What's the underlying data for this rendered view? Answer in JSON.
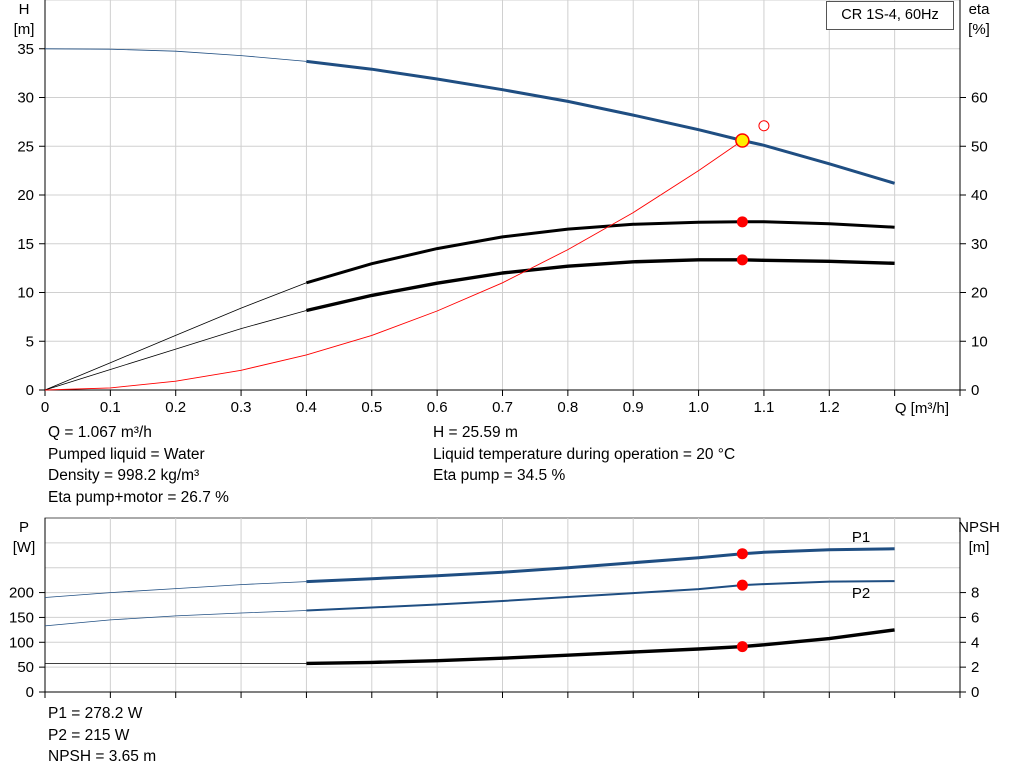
{
  "legend_title": "CR 1S-4, 60Hz",
  "info": {
    "top_left": [
      "Q = 1.067 m³/h",
      "Pumped liquid = Water",
      "Density = 998.2 kg/m³",
      "Eta pump+motor = 26.7 %"
    ],
    "top_right": [
      "H = 25.59 m",
      "Liquid temperature during operation = 20 °C",
      "Eta pump = 34.5 %"
    ],
    "bottom_left": [
      "P1 = 278.2 W",
      "P2 = 215 W",
      "NPSH = 3.65 m"
    ]
  },
  "colors": {
    "blue": "#1f4e82",
    "black": "#000000",
    "red": "#ff0000",
    "grid": "#d0d0d0"
  },
  "chart_data": [
    {
      "type": "line",
      "name": "Q-H / efficiency",
      "x_axis": {
        "label": "Q [m³/h]",
        "range": [
          0,
          1.4
        ],
        "ticks": [
          0,
          0.1,
          0.2,
          0.3,
          0.4,
          0.5,
          0.6,
          0.7,
          0.8,
          0.9,
          1.0,
          1.1,
          1.2
        ],
        "tick_labels": [
          "0",
          "0.1",
          "0.2",
          "0.3",
          "0.4",
          "0.5",
          "0.6",
          "0.7",
          "0.8",
          "0.9",
          "1.0",
          "1.1",
          "1.2"
        ]
      },
      "y_left": {
        "label_line1": "H",
        "label_line2": "[m]",
        "range": [
          0,
          40
        ],
        "ticks": [
          0,
          5,
          10,
          15,
          20,
          25,
          30,
          35
        ]
      },
      "y_right": {
        "label_line1": "eta",
        "label_line2": "[%]",
        "range": [
          0,
          80
        ],
        "ticks": [
          0,
          10,
          20,
          30,
          40,
          50,
          60
        ]
      },
      "grid": true,
      "series": [
        {
          "name": "H",
          "axis": "left",
          "color": "blue",
          "x": [
            0,
            0.1,
            0.2,
            0.3,
            0.4,
            0.5,
            0.6,
            0.7,
            0.8,
            0.9,
            1.0,
            1.067,
            1.1,
            1.2,
            1.3
          ],
          "y": [
            35,
            34.95,
            34.75,
            34.3,
            33.7,
            32.9,
            31.9,
            30.8,
            29.6,
            28.2,
            26.7,
            25.59,
            25.1,
            23.2,
            21.2
          ],
          "bold_from": 0.4
        },
        {
          "name": "Eta pump",
          "axis": "right",
          "color": "black",
          "x": [
            0,
            0.1,
            0.2,
            0.3,
            0.4,
            0.5,
            0.6,
            0.7,
            0.8,
            0.9,
            1.0,
            1.067,
            1.1,
            1.2,
            1.3
          ],
          "y": [
            0,
            5.6,
            11.2,
            16.8,
            22,
            25.9,
            29,
            31.4,
            33,
            34,
            34.4,
            34.5,
            34.5,
            34.1,
            33.4
          ],
          "bold_from": 0.4
        },
        {
          "name": "Eta pump+motor",
          "axis": "right",
          "color": "black",
          "x": [
            0,
            0.1,
            0.2,
            0.3,
            0.4,
            0.5,
            0.6,
            0.7,
            0.8,
            0.9,
            1.0,
            1.067,
            1.1,
            1.2,
            1.3
          ],
          "y": [
            0,
            4.2,
            8.4,
            12.6,
            16.3,
            19.4,
            21.9,
            24,
            25.4,
            26.3,
            26.7,
            26.7,
            26.6,
            26.4,
            26
          ],
          "bold_from": 0.4,
          "heavy": true
        },
        {
          "name": "System curve",
          "axis": "left",
          "color": "red",
          "x": [
            0,
            0.1,
            0.2,
            0.3,
            0.4,
            0.5,
            0.6,
            0.7,
            0.8,
            0.9,
            1.0,
            1.067
          ],
          "y": [
            0,
            0.22,
            0.9,
            2.02,
            3.6,
            5.6,
            8.1,
            11.0,
            14.4,
            18.2,
            22.5,
            25.59
          ],
          "thin": true
        }
      ],
      "markers": [
        {
          "series": "duty point",
          "x": 1.067,
          "y": 25.59,
          "axis": "left",
          "style": "duty"
        },
        {
          "series": "eta pump point",
          "x": 1.067,
          "y": 34.5,
          "axis": "right",
          "style": "dot"
        },
        {
          "series": "eta pump+motor point",
          "x": 1.067,
          "y": 26.7,
          "axis": "right",
          "style": "dot"
        },
        {
          "series": "max point",
          "x": 1.1,
          "y": 27.1,
          "axis": "left",
          "style": "open"
        }
      ]
    },
    {
      "type": "line",
      "name": "Power / NPSH",
      "x_axis": {
        "range": [
          0,
          1.4
        ],
        "ticks": [
          0,
          0.1,
          0.2,
          0.3,
          0.4,
          0.5,
          0.6,
          0.7,
          0.8,
          0.9,
          1.0,
          1.1,
          1.2
        ]
      },
      "y_left": {
        "label_line1": "P",
        "label_line2": "[W]",
        "range": [
          0,
          350
        ],
        "ticks": [
          0,
          50,
          100,
          150,
          200
        ]
      },
      "y_right": {
        "label_line1": "NPSH",
        "label_line2": "[m]",
        "range": [
          0,
          14
        ],
        "ticks": [
          0,
          2,
          4,
          6,
          8
        ]
      },
      "grid": true,
      "series": [
        {
          "name": "P1",
          "axis": "left",
          "color": "blue",
          "label": "P1",
          "x": [
            0,
            0.1,
            0.2,
            0.3,
            0.4,
            0.5,
            0.6,
            0.7,
            0.8,
            0.9,
            1.0,
            1.067,
            1.1,
            1.2,
            1.3
          ],
          "y": [
            190,
            200,
            208,
            216,
            222,
            228,
            234,
            241,
            250,
            260,
            270,
            278.2,
            281,
            286,
            288
          ],
          "bold_from": 0.4
        },
        {
          "name": "P2",
          "axis": "left",
          "color": "blue",
          "label": "P2",
          "x": [
            0,
            0.1,
            0.2,
            0.3,
            0.4,
            0.5,
            0.6,
            0.7,
            0.8,
            0.9,
            1.0,
            1.067,
            1.1,
            1.2,
            1.3
          ],
          "y": [
            133,
            145,
            153,
            159,
            164,
            170,
            176,
            183,
            191,
            199,
            207,
            215,
            217,
            222,
            223
          ],
          "bold_from": 0.4,
          "thin_bold": true
        },
        {
          "name": "NPSH",
          "axis": "right",
          "color": "black",
          "x": [
            0,
            0.1,
            0.2,
            0.3,
            0.4,
            0.5,
            0.6,
            0.7,
            0.8,
            0.9,
            1.0,
            1.067,
            1.1,
            1.2,
            1.3
          ],
          "y": [
            2.3,
            2.3,
            2.3,
            2.3,
            2.3,
            2.38,
            2.52,
            2.72,
            2.96,
            3.22,
            3.46,
            3.65,
            3.8,
            4.3,
            5.0
          ],
          "bold_from": 0.4,
          "heavy": true
        }
      ],
      "markers": [
        {
          "series": "P1 point",
          "x": 1.067,
          "y": 278.2,
          "axis": "left",
          "style": "dot"
        },
        {
          "series": "P2 point",
          "x": 1.067,
          "y": 215,
          "axis": "left",
          "style": "dot"
        },
        {
          "series": "NPSH point",
          "x": 1.067,
          "y": 3.65,
          "axis": "right",
          "style": "dot"
        }
      ]
    }
  ]
}
